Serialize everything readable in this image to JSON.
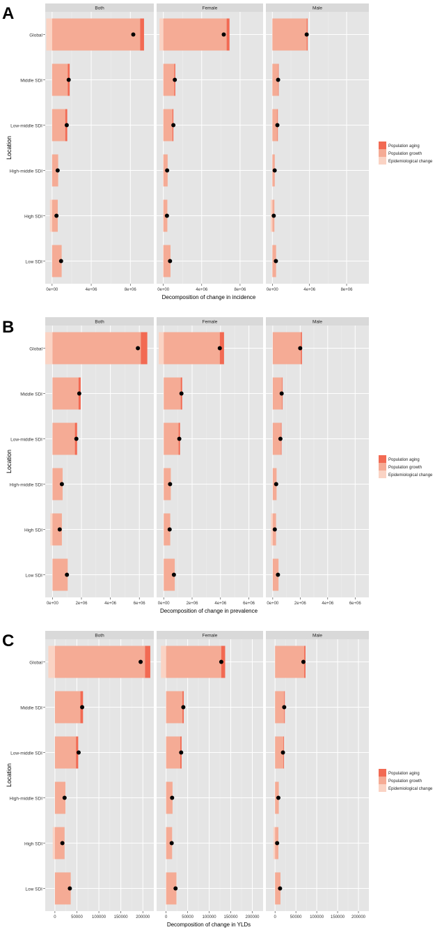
{
  "colors": {
    "panel_bg": "#e5e5e5",
    "grid_major": "#ffffff",
    "grid_minor": "#f0f0f0",
    "strip_bg": "#d9d9d9",
    "aging": "#f26a53",
    "growth": "#f5ab95",
    "epi": "#fad3c4",
    "dot": "#000000"
  },
  "chart_data": [
    {
      "tag": "A",
      "type": "bar",
      "orientation": "horizontal",
      "stacked": true,
      "ylabel": "Location",
      "xlabel": "Decomposition of change in incidence",
      "locations": [
        "Global",
        "Middle SDI",
        "Low-middle SDI",
        "High-middle SDI",
        "High SDI",
        "Low SDI"
      ],
      "legend": [
        "Population aging",
        "Population growth",
        "Epidemiological change"
      ],
      "legend_position": "right",
      "grid": true,
      "xlim": [
        -700000,
        10400000
      ],
      "xticks": [
        0,
        4000000,
        8000000
      ],
      "xtick_labels": [
        "0e+00",
        "4e+06",
        "8e+06"
      ],
      "facets": [
        {
          "label": "Both",
          "rows": [
            {
              "aging": 400000,
              "growth": 9000000,
              "epi": -600000,
              "total": 8300000
            },
            {
              "aging": 200000,
              "growth": 1600000,
              "epi": 0,
              "total": 1700000
            },
            {
              "aging": 200000,
              "growth": 1350000,
              "epi": 0,
              "total": 1500000
            },
            {
              "aging": 0,
              "growth": 620000,
              "epi": 0,
              "total": 570000
            },
            {
              "aging": 0,
              "growth": 580000,
              "epi": -220000,
              "total": 450000
            },
            {
              "aging": 0,
              "growth": 980000,
              "epi": 0,
              "total": 920000
            }
          ]
        },
        {
          "label": "Female",
          "rows": [
            {
              "aging": 300000,
              "growth": 6600000,
              "epi": -400000,
              "total": 6300000
            },
            {
              "aging": 100000,
              "growth": 1150000,
              "epi": 0,
              "total": 1200000
            },
            {
              "aging": 100000,
              "growth": 950000,
              "epi": 0,
              "total": 1050000
            },
            {
              "aging": 0,
              "growth": 450000,
              "epi": 0,
              "total": 400000
            },
            {
              "aging": 0,
              "growth": 420000,
              "epi": 0,
              "total": 380000
            },
            {
              "aging": 0,
              "growth": 750000,
              "epi": 0,
              "total": 700000
            }
          ]
        },
        {
          "label": "Male",
          "rows": [
            {
              "aging": 100000,
              "growth": 3700000,
              "epi": 0,
              "total": 3700000
            },
            {
              "aging": 50000,
              "growth": 630000,
              "epi": 0,
              "total": 620000
            },
            {
              "aging": 50000,
              "growth": 540000,
              "epi": 0,
              "total": 540000
            },
            {
              "aging": 0,
              "growth": 260000,
              "epi": 0,
              "total": 250000
            },
            {
              "aging": 0,
              "growth": 220000,
              "epi": -180000,
              "total": 150000
            },
            {
              "aging": 0,
              "growth": 400000,
              "epi": 0,
              "total": 380000
            }
          ]
        }
      ]
    },
    {
      "tag": "B",
      "type": "bar",
      "orientation": "horizontal",
      "stacked": true,
      "ylabel": "Location",
      "xlabel": "Decomposition of change in prevalence",
      "locations": [
        "Global",
        "Middle SDI",
        "Low-middle SDI",
        "High-middle SDI",
        "High SDI",
        "Low SDI"
      ],
      "legend": [
        "Population aging",
        "Population growth",
        "Epidemiological change"
      ],
      "legend_position": "right",
      "grid": true,
      "xlim": [
        -500000,
        7000000
      ],
      "xticks": [
        0,
        2000000,
        4000000,
        6000000
      ],
      "xtick_labels": [
        "0e+00",
        "2e+06",
        "4e+06",
        "6e+06"
      ],
      "facets": [
        {
          "label": "Both",
          "rows": [
            {
              "aging": 450000,
              "growth": 6100000,
              "epi": -500000,
              "total": 5900000
            },
            {
              "aging": 150000,
              "growth": 1800000,
              "epi": 0,
              "total": 1850000
            },
            {
              "aging": 150000,
              "growth": 1550000,
              "epi": 0,
              "total": 1650000
            },
            {
              "aging": 0,
              "growth": 700000,
              "epi": 0,
              "total": 650000
            },
            {
              "aging": 0,
              "growth": 650000,
              "epi": -150000,
              "total": 500000
            },
            {
              "aging": 0,
              "growth": 1050000,
              "epi": 0,
              "total": 1000000
            }
          ]
        },
        {
          "label": "Female",
          "rows": [
            {
              "aging": 300000,
              "growth": 3950000,
              "epi": -350000,
              "total": 3950000
            },
            {
              "aging": 100000,
              "growth": 1200000,
              "epi": 0,
              "total": 1250000
            },
            {
              "aging": 100000,
              "growth": 1050000,
              "epi": 0,
              "total": 1100000
            },
            {
              "aging": 0,
              "growth": 500000,
              "epi": 0,
              "total": 450000
            },
            {
              "aging": 0,
              "growth": 460000,
              "epi": 0,
              "total": 420000
            },
            {
              "aging": 0,
              "growth": 780000,
              "epi": 0,
              "total": 720000
            }
          ]
        },
        {
          "label": "Male",
          "rows": [
            {
              "aging": 80000,
              "growth": 2050000,
              "epi": 0,
              "total": 2000000
            },
            {
              "aging": 40000,
              "growth": 680000,
              "epi": 0,
              "total": 650000
            },
            {
              "aging": 40000,
              "growth": 600000,
              "epi": 0,
              "total": 560000
            },
            {
              "aging": 0,
              "growth": 280000,
              "epi": 0,
              "total": 250000
            },
            {
              "aging": 0,
              "growth": 240000,
              "epi": -130000,
              "total": 150000
            },
            {
              "aging": 0,
              "growth": 420000,
              "epi": 0,
              "total": 380000
            }
          ]
        }
      ]
    },
    {
      "tag": "C",
      "type": "bar",
      "orientation": "horizontal",
      "stacked": true,
      "ylabel": "Location",
      "xlabel": "Decomposition of change in YLDs",
      "locations": [
        "Global",
        "Middle SDI",
        "Low-middle SDI",
        "High-middle SDI",
        "High SDI",
        "Low SDI"
      ],
      "legend": [
        "Population aging",
        "Population growth",
        "Epidemiological change"
      ],
      "legend_position": "right",
      "grid": true,
      "xlim": [
        -22000,
        225000
      ],
      "xticks": [
        0,
        50000,
        100000,
        150000,
        200000
      ],
      "xtick_labels": [
        "0",
        "50000",
        "100000",
        "150000",
        "200000"
      ],
      "facets": [
        {
          "label": "Both",
          "rows": [
            {
              "aging": 12000,
              "growth": 205000,
              "epi": -15000,
              "total": 195000
            },
            {
              "aging": 6000,
              "growth": 58000,
              "epi": 0,
              "total": 62000
            },
            {
              "aging": 5000,
              "growth": 48000,
              "epi": 0,
              "total": 54000
            },
            {
              "aging": 0,
              "growth": 24000,
              "epi": 0,
              "total": 22000
            },
            {
              "aging": 0,
              "growth": 22000,
              "epi": -5000,
              "total": 17000
            },
            {
              "aging": 0,
              "growth": 36000,
              "epi": 0,
              "total": 34000
            }
          ]
        },
        {
          "label": "Female",
          "rows": [
            {
              "aging": 9000,
              "growth": 128000,
              "epi": -12000,
              "total": 128000
            },
            {
              "aging": 3000,
              "growth": 38000,
              "epi": 0,
              "total": 40000
            },
            {
              "aging": 3000,
              "growth": 33000,
              "epi": 0,
              "total": 35000
            },
            {
              "aging": 0,
              "growth": 15000,
              "epi": 0,
              "total": 14000
            },
            {
              "aging": 0,
              "growth": 14000,
              "epi": 0,
              "total": 13000
            },
            {
              "aging": 0,
              "growth": 24000,
              "epi": 0,
              "total": 22000
            }
          ]
        },
        {
          "label": "Male",
          "rows": [
            {
              "aging": 3000,
              "growth": 70000,
              "epi": 0,
              "total": 68000
            },
            {
              "aging": 1500,
              "growth": 22000,
              "epi": 0,
              "total": 22000
            },
            {
              "aging": 1500,
              "growth": 20000,
              "epi": 0,
              "total": 19000
            },
            {
              "aging": 0,
              "growth": 9000,
              "epi": 0,
              "total": 8000
            },
            {
              "aging": 0,
              "growth": 8000,
              "epi": -4000,
              "total": 5000
            },
            {
              "aging": 0,
              "growth": 13000,
              "epi": 0,
              "total": 12000
            }
          ]
        }
      ]
    }
  ]
}
